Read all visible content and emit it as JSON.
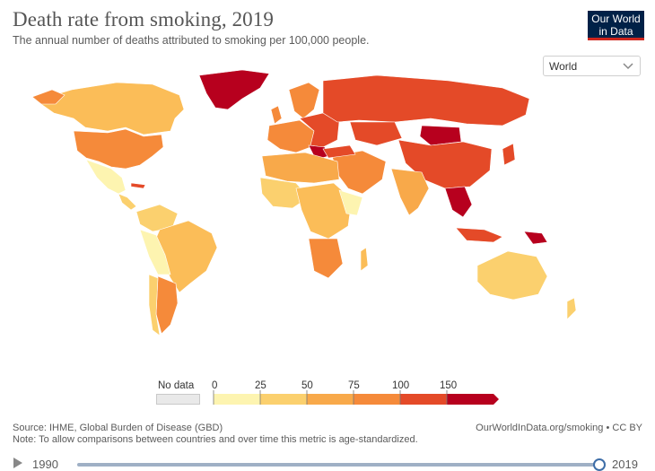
{
  "header": {
    "title": "Death rate from smoking, 2019",
    "subtitle": "The annual number of deaths attributed to smoking per 100,000 people."
  },
  "logo": {
    "line1": "Our World",
    "line2": "in Data"
  },
  "controls": {
    "region_selected": "World"
  },
  "legend": {
    "no_data_label": "No data",
    "ticks": [
      "0",
      "25",
      "50",
      "75",
      "100",
      "150"
    ],
    "bins": [
      {
        "from": 0,
        "to": 25,
        "color": "#fdf4b0"
      },
      {
        "from": 25,
        "to": 50,
        "color": "#fbd06e"
      },
      {
        "from": 50,
        "to": 75,
        "color": "#f8a94a"
      },
      {
        "from": 75,
        "to": 100,
        "color": "#f58a3a"
      },
      {
        "from": 100,
        "to": 150,
        "color": "#e44a28"
      },
      {
        "from": 150,
        "to": null,
        "color": "#b7001e"
      }
    ],
    "no_data_color": "#e9e9e9"
  },
  "footer": {
    "source": "Source: IHME, Global Burden of Disease (GBD)",
    "note": "Note: To allow comparisons between countries and over time this metric is age-standardized.",
    "url": "OurWorldInData.org/smoking • CC BY"
  },
  "timeline": {
    "start_year": "1990",
    "end_year": "2019",
    "selected_year": "2019"
  },
  "colors": {
    "ocean": "#ffffff",
    "border": "#ffffff",
    "logo_bg": "#002147",
    "logo_accent": "#ce261e",
    "slider": "#3e6ea8"
  },
  "icons": {
    "play": "play-icon",
    "dropdown": "chevron-down-icon"
  }
}
